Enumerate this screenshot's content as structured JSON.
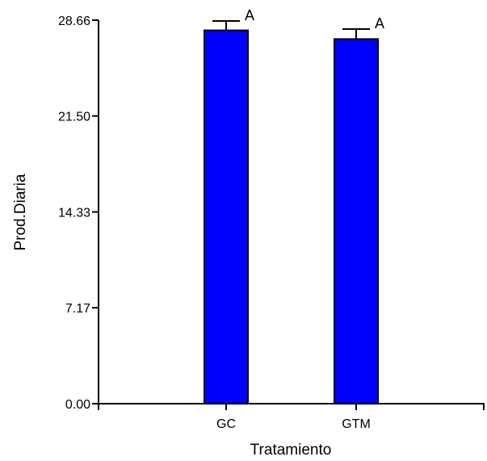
{
  "chart_data": {
    "type": "bar",
    "xlabel": "Tratamiento",
    "ylabel": "Prod.Diaria",
    "ylim": [
      0,
      28.66
    ],
    "yticks": [
      0.0,
      7.17,
      14.33,
      21.5,
      28.66
    ],
    "ytick_labels": [
      "0.00",
      "7.17",
      "14.33",
      "21.50",
      "28.66"
    ],
    "categories": [
      "GC",
      "GTM"
    ],
    "values": [
      27.9,
      27.25
    ],
    "error_upper": [
      0.7,
      0.75
    ],
    "data_labels": [
      "A",
      "A"
    ],
    "bar_color": "#0000ff",
    "grid": false
  }
}
